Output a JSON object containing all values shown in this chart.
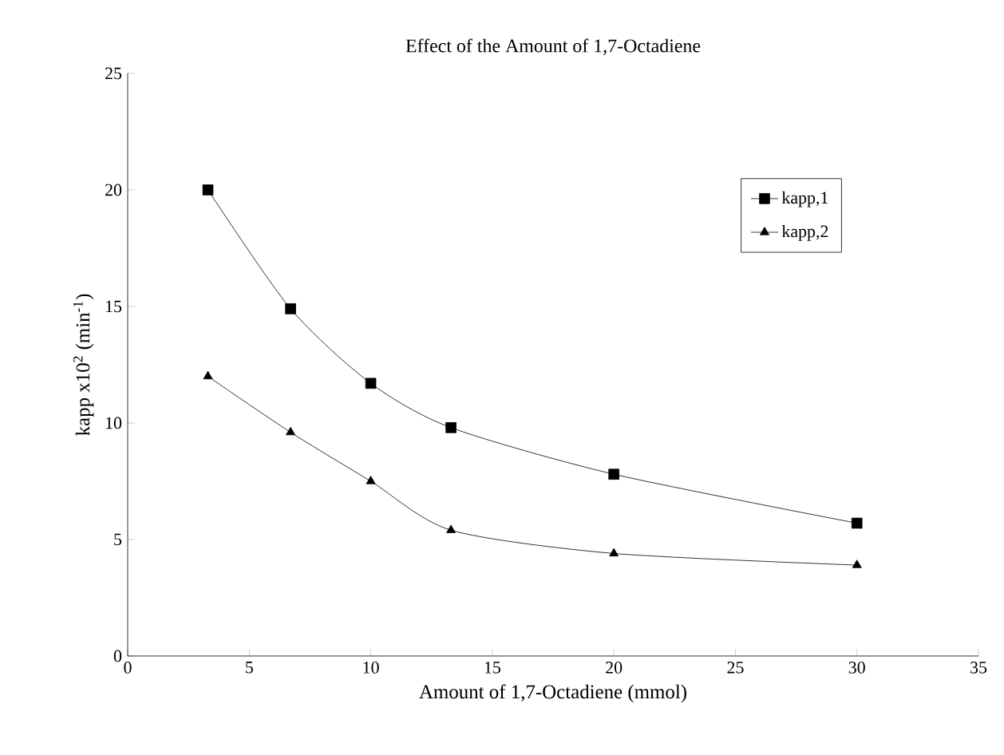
{
  "chart_data": {
    "type": "line",
    "title": "Effect of the Amount of 1,7-Octadiene",
    "xlabel": "Amount of  1,7-Octadiene (mmol)",
    "ylabel": "kapp x10$^{2}$ (min$^{-1}$)",
    "series": [
      {
        "name": "kapp,1",
        "color": "#000000",
        "marker": "square",
        "x": [
          3.3,
          6.7,
          10,
          13.3,
          20,
          30
        ],
        "values": [
          20.0,
          14.9,
          11.7,
          9.8,
          7.8,
          5.7
        ]
      },
      {
        "name": "kapp,2",
        "color": "#000000",
        "marker": "triangle",
        "x": [
          3.3,
          6.7,
          10,
          13.3,
          20,
          30
        ],
        "values": [
          12.0,
          9.6,
          7.5,
          5.4,
          4.4,
          3.9
        ]
      }
    ],
    "xlim": [
      0,
      35
    ],
    "ylim": [
      0,
      25
    ],
    "xticks": [
      0,
      5,
      10,
      15,
      20,
      25,
      30,
      35
    ],
    "yticks": [
      0,
      5,
      10,
      15,
      20,
      25
    ],
    "grid": false,
    "legend": "top right",
    "line_style": "solid"
  }
}
